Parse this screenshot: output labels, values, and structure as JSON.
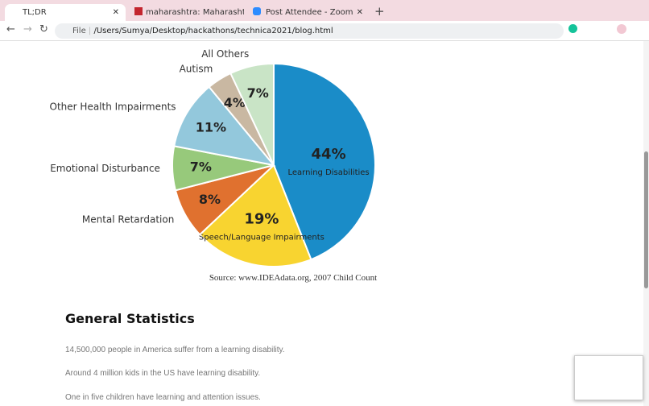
{
  "browser": {
    "tabs": [
      "TL;DR",
      "maharashtra: Maharashtra enc",
      "Post Attendee - Zoom"
    ],
    "scheme": "File",
    "url": "/Users/Sumya/Desktop/hackathons/technica2021/blog.html"
  },
  "chart_data": {
    "type": "pie",
    "categories": [
      "Learning Disabilities",
      "Speech/Language Impairments",
      "Mental Retardation",
      "Emotional Disturbance",
      "Other Health Impairments",
      "Autism",
      "All Others"
    ],
    "values": [
      44,
      19,
      8,
      7,
      11,
      4,
      7
    ],
    "value_labels": [
      "44%",
      "19%",
      "8%",
      "7%",
      "11%",
      "4%",
      "7%"
    ],
    "colors": [
      "#1a8cc8",
      "#f8d430",
      "#e0712f",
      "#97c97b",
      "#93c8dc",
      "#c9b8a2",
      "#c9e4c6"
    ],
    "source": "Source: www.IDEAdata.org,  2007 Child Count"
  },
  "article": {
    "heading": "General Statistics",
    "paragraphs": [
      "14,500,000 people in America suffer from a learning disability.",
      "Around 4 million kids in the US have learning disability.",
      "One in five children have learning and attention issues."
    ]
  }
}
